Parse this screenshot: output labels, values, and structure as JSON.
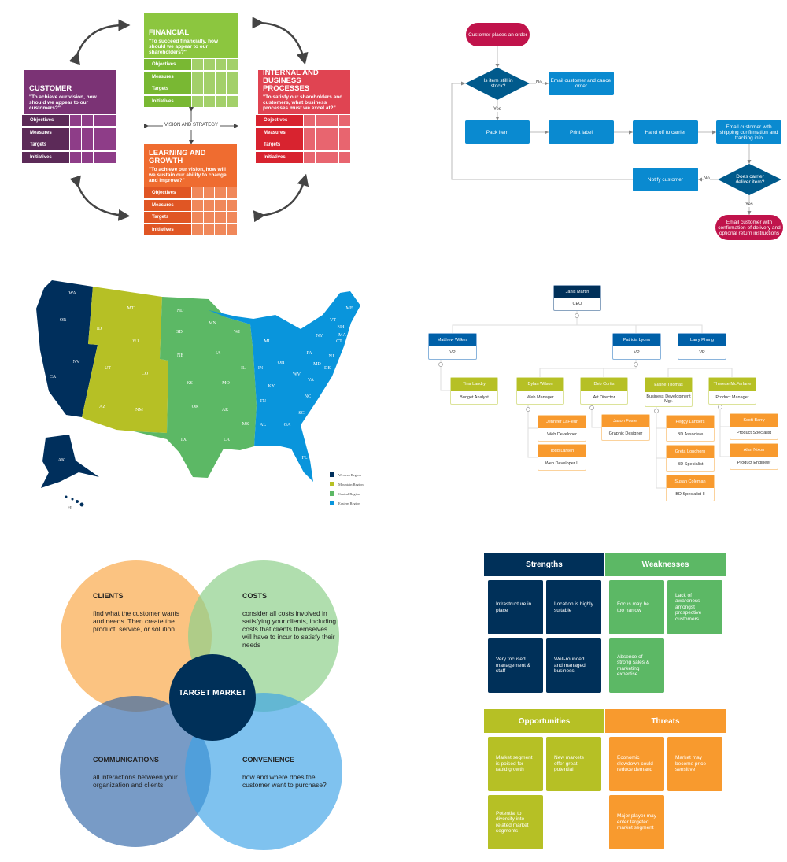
{
  "scorecard": {
    "center_label": "VISION AND STRATEGY",
    "row_labels": [
      "Objectives",
      "Measures",
      "Targets",
      "Initiatives"
    ],
    "perspectives": [
      {
        "id": "financial",
        "title": "FINANCIAL",
        "question": "\"To succeed financially, how should we appear to our shareholders?\"",
        "color": "#8cc63f",
        "dark": "#79b833",
        "cell": "#a3d06a"
      },
      {
        "id": "customer",
        "title": "CUSTOMER",
        "question": "\"To achieve our vision, how should we appear to our customers?\"",
        "color": "#7b3375",
        "dark": "#5c2a58",
        "cell": "#8e3d88"
      },
      {
        "id": "internal",
        "title": "INTERNAL AND BUSINESS PROCESSES",
        "question": "\"To satisfy our shareholders and customers, what business processes must we excel at?\"",
        "color": "#e04452",
        "dark": "#d8232f",
        "cell": "#e8656f"
      },
      {
        "id": "learning",
        "title": "LEARNING AND GROWTH",
        "question": "\"To achieve our vision, how will we sustain our ability to change and improve?\"",
        "color": "#ef6c30",
        "dark": "#e05624",
        "cell": "#f0885a"
      }
    ]
  },
  "flowchart": {
    "start": "Customer places an order",
    "decision1": "Is item still in stock?",
    "cancel": "Email customer and cancel order",
    "steps": [
      "Pack item",
      "Print label",
      "Hand off to carrier",
      "Email customer with shipping confirmation and tracking info"
    ],
    "decision2": "Does carrier deliver item?",
    "notify": "Notify customer",
    "end": "Email customer with confirmation of delivery and optional return instructions",
    "yes": "Yes",
    "no": "No",
    "colors": {
      "terminal": "#c0134b",
      "process": "#0a8ad0",
      "decision": "#005a8c"
    }
  },
  "map": {
    "states": [
      "WA",
      "OR",
      "NV",
      "CA",
      "ID",
      "MT",
      "WY",
      "UT",
      "CO",
      "AZ",
      "NM",
      "ND",
      "SD",
      "NE",
      "KS",
      "OK",
      "TX",
      "MN",
      "WI",
      "IA",
      "IL",
      "MO",
      "AR",
      "LA",
      "MS",
      "MI",
      "IN",
      "OH",
      "KY",
      "TN",
      "AL",
      "GA",
      "FL",
      "SC",
      "NC",
      "VA",
      "WV",
      "PA",
      "NY",
      "MD",
      "DE",
      "NJ",
      "CT",
      "MA",
      "NH",
      "VT",
      "ME",
      "AK",
      "HI"
    ],
    "legend": [
      {
        "label": "Western Region",
        "color": "#002f5c"
      },
      {
        "label": "Mountain Region",
        "color": "#b6c025"
      },
      {
        "label": "Central Region",
        "color": "#5cb865"
      },
      {
        "label": "Eastern Region",
        "color": "#0995dc"
      }
    ]
  },
  "org": {
    "ceo": {
      "name": "Janis Martin",
      "title": "CEO"
    },
    "vps": [
      {
        "name": "Matthew Wilkes",
        "title": "VP"
      },
      {
        "name": "Patricia Lyons",
        "title": "VP"
      },
      {
        "name": "Larry Phung",
        "title": "VP"
      }
    ],
    "managers": [
      {
        "name": "Tina Landry",
        "title": "Budget Analyst"
      },
      {
        "name": "Dylan Wilson",
        "title": "Web Manager"
      },
      {
        "name": "Deb Curtis",
        "title": "Art Director"
      },
      {
        "name": "Elaine Thomas",
        "title": "Business Development Mgr."
      },
      {
        "name": "Therese McFarlane",
        "title": "Product Manager"
      }
    ],
    "staff": [
      {
        "name": "Jennifer LaFleur",
        "title": "Web Developer"
      },
      {
        "name": "Todd Larsen",
        "title": "Web Developer II"
      },
      {
        "name": "Jason Foster",
        "title": "Graphic Designer"
      },
      {
        "name": "Peggy Landers",
        "title": "BD Associate"
      },
      {
        "name": "Greta Longhorn",
        "title": "BD Specialist"
      },
      {
        "name": "Susan Coleman",
        "title": "BD Specialist II"
      },
      {
        "name": "Scott Barry",
        "title": "Product Specialist"
      },
      {
        "name": "Alan Nixon",
        "title": "Product Engineer"
      }
    ]
  },
  "venn": {
    "center": "TARGET MARKET",
    "sets": [
      {
        "title": "CLIENTS",
        "text": "find what the customer wants and needs.  Then create the product, service, or solution.",
        "color": "#f9a94b"
      },
      {
        "title": "COSTS",
        "text": "consider all costs involved in satisfying your clients, including costs that clients themselves will have to incur to satisfy their needs",
        "color": "#8fd08c"
      },
      {
        "title": "COMMUNICATIONS",
        "text": "all interactions between your organization and clients",
        "color": "#2f65a8"
      },
      {
        "title": "CONVENIENCE",
        "text": "how and where does the customer want to purchase?",
        "color": "#3aa2e6"
      }
    ]
  },
  "swot": [
    {
      "title": "Strengths",
      "color": "#003059",
      "items": [
        "Infrastructure in place",
        "Location is highly suitable",
        "Very focused management & staff",
        "Well-rounded and managed business"
      ]
    },
    {
      "title": "Weaknesses",
      "color": "#5cb865",
      "items": [
        "Focus may be too narrow",
        "Lack of awareness amongst prospective customers",
        "Absence of strong sales & marketing expertise"
      ]
    },
    {
      "title": "Opportunities",
      "color": "#b6c025",
      "items": [
        "Market segment is poised for rapid growth",
        "New markets offer great potential",
        "Potential to diversify into related market segments"
      ]
    },
    {
      "title": "Threats",
      "color": "#f89a2e",
      "items": [
        "Economic slowdown could reduce demand",
        "Market may become price sensitive",
        "Major player may enter targeted market segment"
      ]
    }
  ]
}
